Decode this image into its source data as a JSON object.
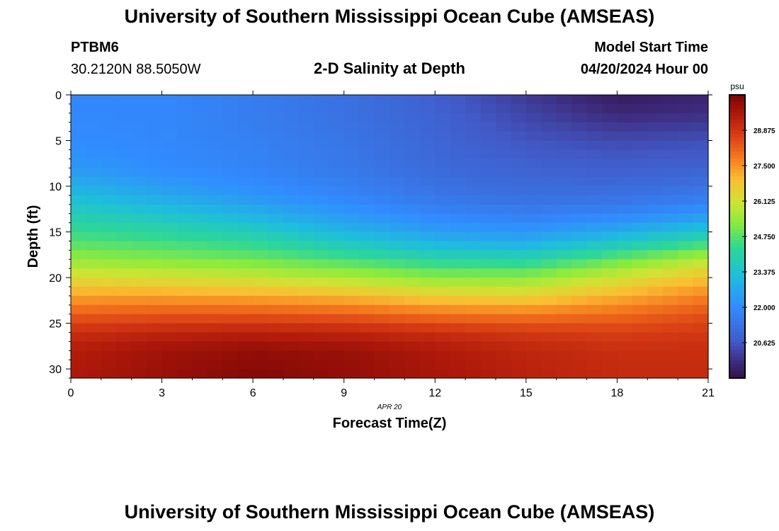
{
  "header": {
    "title": "University of Southern Mississippi Ocean Cube (AMSEAS)",
    "station": "PTBM6",
    "coords": "30.2120N  88.5050W",
    "subtitle": "2-D Salinity at Depth",
    "start_label": "Model Start Time",
    "start_value": "04/20/2024 Hour 00"
  },
  "footer": {
    "title": "University of Southern Mississippi Ocean Cube (AMSEAS)"
  },
  "colorbar": {
    "unit": "psu",
    "range": [
      19.25,
      30.25
    ],
    "ticks": [
      20.625,
      22.0,
      23.375,
      24.75,
      26.125,
      27.5,
      28.875
    ],
    "tick_labels": [
      "20.625",
      "22.000",
      "23.375",
      "24.750",
      "26.125",
      "27.500",
      "28.875"
    ]
  },
  "chart_data": {
    "type": "heatmap",
    "title": "2-D Salinity at Depth",
    "xlabel": "Forecast Time(Z)",
    "ylabel": "Depth (ft)",
    "date_label": "APR 20",
    "xlim": [
      0,
      21
    ],
    "ylim": [
      0,
      31
    ],
    "y_inverted": true,
    "xticks": [
      0,
      3,
      6,
      9,
      12,
      15,
      18,
      21
    ],
    "yticks": [
      0,
      5,
      10,
      15,
      20,
      25,
      30
    ],
    "x_hours": [
      0,
      3,
      6,
      9,
      12,
      15,
      18,
      21
    ],
    "depth_profile_ft": [
      0,
      2,
      5,
      8,
      10,
      12,
      14,
      16,
      18,
      20,
      22,
      24,
      26,
      28,
      31
    ],
    "salinity_psu": [
      [
        21.9,
        21.9,
        21.6,
        21.3,
        20.8,
        20.1,
        19.5,
        19.7
      ],
      [
        21.9,
        21.9,
        21.6,
        21.3,
        20.9,
        20.3,
        19.8,
        19.9
      ],
      [
        22.0,
        21.9,
        21.7,
        21.4,
        21.0,
        20.6,
        20.4,
        20.5
      ],
      [
        22.3,
        22.0,
        21.8,
        21.5,
        21.1,
        20.9,
        20.8,
        20.9
      ],
      [
        22.9,
        22.4,
        22.0,
        21.7,
        21.3,
        21.1,
        21.1,
        21.3
      ],
      [
        23.5,
        23.0,
        22.5,
        22.0,
        21.6,
        21.4,
        21.5,
        21.8
      ],
      [
        24.1,
        23.8,
        23.3,
        22.6,
        22.1,
        21.9,
        22.2,
        22.8
      ],
      [
        24.7,
        24.5,
        24.2,
        23.5,
        22.9,
        22.7,
        23.4,
        24.3
      ],
      [
        25.4,
        25.2,
        25.0,
        24.6,
        24.1,
        24.0,
        24.9,
        25.8
      ],
      [
        26.3,
        26.2,
        26.0,
        25.7,
        25.3,
        25.3,
        26.1,
        26.9
      ],
      [
        27.3,
        27.3,
        27.2,
        27.0,
        26.6,
        26.5,
        27.1,
        27.7
      ],
      [
        28.2,
        28.3,
        28.3,
        28.2,
        27.9,
        27.8,
        28.0,
        28.4
      ],
      [
        29.0,
        29.2,
        29.3,
        29.2,
        29.0,
        28.8,
        28.7,
        28.8
      ],
      [
        29.4,
        29.7,
        29.9,
        29.8,
        29.5,
        29.2,
        29.0,
        29.0
      ],
      [
        29.5,
        29.8,
        30.1,
        29.9,
        29.6,
        29.3,
        29.1,
        29.1
      ]
    ]
  }
}
